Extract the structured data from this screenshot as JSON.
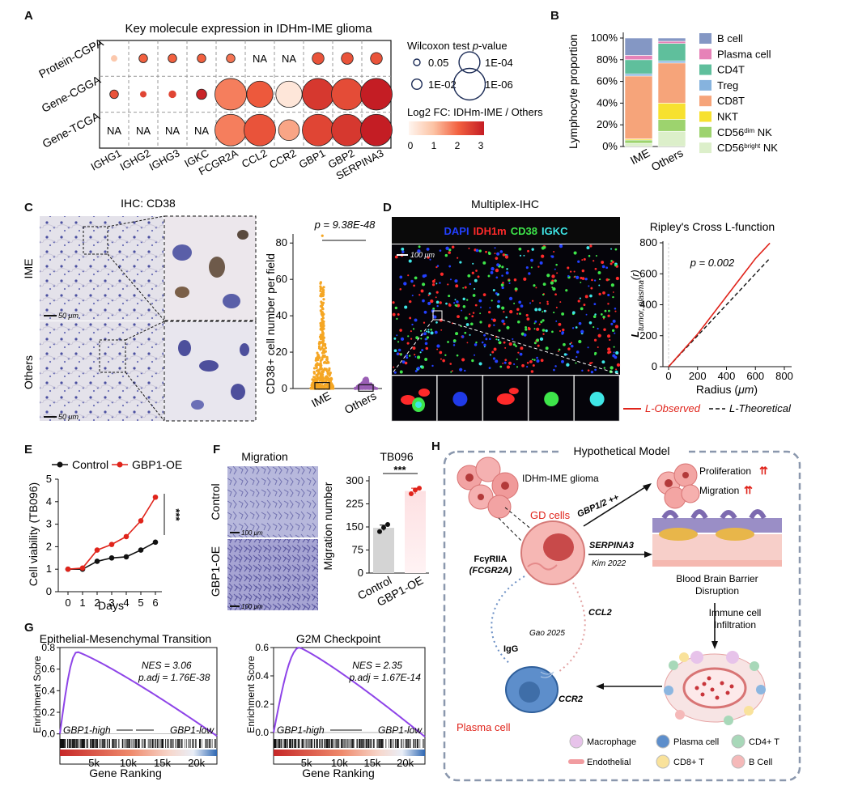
{
  "panel_letters": {
    "A": "A",
    "B": "B",
    "C": "C",
    "D": "D",
    "E": "E",
    "F": "F",
    "G": "G",
    "H": "H"
  },
  "panelA": {
    "title": "Key molecule expression in IDHm-IME glioma",
    "rows": [
      "Protein-CGPA",
      "Gene-CGGA",
      "Gene-TCGA"
    ],
    "cols": [
      "IGHG1",
      "IGHG2",
      "IGHG3",
      "IGKC",
      "FCGR2A",
      "CCL2",
      "CCR2",
      "GBP1",
      "GBP2",
      "SERPINA3"
    ],
    "cells": [
      [
        {
          "fc": 0.9,
          "p": 0.05
        },
        {
          "fc": 2.0,
          "p": 0.02
        },
        {
          "fc": 2.0,
          "p": 0.02
        },
        {
          "fc": 2.0,
          "p": 0.02
        },
        {
          "fc": 1.8,
          "p": 0.02
        },
        {
          "na": "NA"
        },
        {
          "na": "NA"
        },
        {
          "fc": 2.2,
          "p": 0.005
        },
        {
          "fc": 2.2,
          "p": 0.005
        },
        {
          "fc": 2.2,
          "p": 0.005
        }
      ],
      [
        {
          "fc": 2.2,
          "p": 0.02
        },
        {
          "fc": 2.4,
          "p": 0.05
        },
        {
          "fc": 2.4,
          "p": 0.03
        },
        {
          "fc": 2.9,
          "p": 0.01
        },
        {
          "fc": 1.7,
          "p": 1e-06
        },
        {
          "fc": 2.1,
          "p": 1e-05
        },
        {
          "fc": 0.3,
          "p": 1e-05
        },
        {
          "fc": 2.6,
          "p": 1e-06
        },
        {
          "fc": 2.3,
          "p": 1e-06
        },
        {
          "fc": 3.0,
          "p": 1e-06
        }
      ],
      [
        {
          "na": "NA"
        },
        {
          "na": "NA"
        },
        {
          "na": "NA"
        },
        {
          "na": "NA"
        },
        {
          "fc": 1.7,
          "p": 1e-06
        },
        {
          "fc": 2.2,
          "p": 1e-06
        },
        {
          "fc": 1.3,
          "p": 0.0001
        },
        {
          "fc": 2.4,
          "p": 1e-06
        },
        {
          "fc": 2.6,
          "p": 1e-06
        },
        {
          "fc": 3.0,
          "p": 1e-06
        }
      ]
    ],
    "legend_p_title": "Wilcoxon test p-value",
    "legend_p_title_main": "Wilcoxon test ",
    "legend_p_title_em": "p",
    "legend_p_title_tail": "-value",
    "legend_p": [
      {
        "label": "0.05",
        "p": 0.05
      },
      {
        "label": "1E-04",
        "p": 0.0001
      },
      {
        "label": "1E-02",
        "p": 0.01
      },
      {
        "label": "1E-06",
        "p": 1e-06
      }
    ],
    "legend_fc_title": "Log2 FC: IDHm-IME / Others",
    "legend_fc_ticks": [
      "0",
      "1",
      "2",
      "3"
    ]
  },
  "chart_data": [
    {
      "id": "B",
      "type": "bar",
      "ylabel": "Lymphocyte proportion",
      "categories": [
        "IME",
        "Others"
      ],
      "yticks": [
        "0%",
        "20%",
        "40%",
        "60%",
        "80%",
        "100%"
      ],
      "series": [
        {
          "name": "B cell",
          "color": "#8497c4",
          "values": [
            0.16,
            0.03
          ]
        },
        {
          "name": "Plasma cell",
          "color": "#e682b8",
          "values": [
            0.04,
            0.02
          ]
        },
        {
          "name": "CD4T",
          "color": "#5fbf9c",
          "values": [
            0.13,
            0.16
          ]
        },
        {
          "name": "Treg",
          "color": "#86b3de",
          "values": [
            0.02,
            0.02
          ]
        },
        {
          "name": "CD8T",
          "color": "#f6a47a",
          "values": [
            0.58,
            0.37
          ]
        },
        {
          "name": "NKT",
          "color": "#f7e12f",
          "values": [
            0.01,
            0.15
          ]
        },
        {
          "name": "CD56dim NK",
          "color": "#9dd36e",
          "values": [
            0.03,
            0.11
          ]
        },
        {
          "name": "CD56bright NK",
          "color": "#dcefca",
          "values": [
            0.03,
            0.14
          ]
        }
      ],
      "legend_html_names": [
        "B cell",
        "Plasma cell",
        "CD4T",
        "Treg",
        "CD8T",
        "NKT",
        "CD56<tspan baseline-shift='super' font-size='8'>dim</tspan> NK",
        "CD56<tspan baseline-shift='super' font-size='8'>bright</tspan> NK"
      ]
    },
    {
      "id": "E",
      "type": "line",
      "xlabel": "Days",
      "ylabel": "Cell viability (TB096)",
      "x": [
        0,
        1,
        2,
        3,
        4,
        5,
        6
      ],
      "ylim": [
        0,
        5
      ],
      "series": [
        {
          "name": "Control",
          "color": "#111111",
          "values": [
            1.0,
            1.0,
            1.35,
            1.5,
            1.55,
            1.85,
            2.2
          ]
        },
        {
          "name": "GBP1-OE",
          "color": "#e0241b",
          "values": [
            1.0,
            1.05,
            1.85,
            2.1,
            2.45,
            3.15,
            4.2
          ]
        }
      ],
      "annotation": "***"
    },
    {
      "id": "F",
      "type": "bar",
      "title": "TB096",
      "ylabel": "Migration number",
      "categories": [
        "Control",
        "GBP1-OE"
      ],
      "values": [
        147,
        267
      ],
      "points": [
        [
          135,
          148,
          158
        ],
        [
          258,
          270,
          276
        ]
      ],
      "yticks": [
        0,
        75,
        150,
        225,
        300
      ],
      "annotation": "***"
    },
    {
      "id": "C",
      "type": "scatter",
      "ylabel": "CD38+ cell number per field",
      "categories": [
        "IME",
        "Others"
      ],
      "yticks": [
        0,
        20,
        40,
        60,
        80
      ],
      "annotation": "p = 9.38E-48"
    },
    {
      "id": "D",
      "type": "line",
      "title": "Ripley's Cross L-function",
      "xlabel": "Radius (μm)",
      "xticks": [
        0,
        200,
        400,
        600,
        800
      ],
      "yticks": [
        0,
        200,
        400,
        600,
        800
      ],
      "annotation": "p = 0.002",
      "series": [
        {
          "name": "L-Observed",
          "color": "#e0241b"
        },
        {
          "name": "L-Theoretical",
          "color": "#111111"
        }
      ]
    },
    {
      "id": "G1",
      "type": "line",
      "title": "Epithelial-Mesenchymal Transition",
      "ylabel": "Enrichment Score",
      "xlabel": "Gene Ranking",
      "yticks": [
        "0.0",
        "0.2",
        "0.4",
        "0.6",
        "0.8"
      ],
      "xticks": [
        "5k",
        "10k",
        "15k",
        "20k"
      ],
      "nes": "NES = 3.06",
      "padj": "p.adj = 1.76E-38",
      "left": "GBP1-high",
      "right": "GBP1-low"
    },
    {
      "id": "G2",
      "type": "line",
      "title": "G2M Checkpoint",
      "ylabel": "Enrichment Score",
      "xlabel": "Gene Ranking",
      "yticks": [
        "0.0",
        "0.2",
        "0.4",
        "0.6"
      ],
      "xticks": [
        "5k",
        "10k",
        "15k",
        "20k"
      ],
      "nes": "NES = 2.35",
      "padj": "p.adj = 1.67E-14",
      "left": "GBP1-high",
      "right": "GBP1-low"
    }
  ],
  "panelC": {
    "title": "IHC: CD38",
    "rows": [
      "IME",
      "Others"
    ],
    "scale": "50 μm"
  },
  "panelD": {
    "title": "Multiplex-IHC",
    "channels": [
      {
        "name": "DAPI",
        "color": "#2340ff"
      },
      {
        "name": "IDH1m",
        "color": "#ff2a2a"
      },
      {
        "name": "CD38",
        "color": "#3ee64a"
      },
      {
        "name": "IGKC",
        "color": "#3fe6e6"
      }
    ],
    "scale": "100 μm",
    "ylabel_main": "L",
    "ylabel_sub": "tumor, plasma",
    "ylabel_tail": "(r)",
    "legend_obs": "L-Observed",
    "legend_theo": "L-Theoretical"
  },
  "panelF": {
    "title": "Migration",
    "rows": [
      "Control",
      "GBP1-OE"
    ],
    "scale": "100 μm"
  },
  "panelH": {
    "title": "Hypothetical Model",
    "glioma": "IDHm-IME glioma",
    "gd": "GD cells",
    "gbp": "GBP1/2 ++",
    "serpina": "SERPINA3",
    "kim": "Kim 2022",
    "prolif": "Proliferation",
    "migr": "Migration",
    "bbb": "Blood Brain Barrier Disruption",
    "bbb1": "Blood Brain Barrier",
    "bbb2": "Disruption",
    "infil1": "Immune cell",
    "infil2": "Infiltration",
    "fc1": "FcγRIIA",
    "fc2": "(FCGR2A)",
    "gao": "Gao 2025",
    "ccl2": "CCL2",
    "igg": "IgG",
    "ccr2": "CCR2",
    "plasma": "Plasma cell",
    "legend": [
      "Macrophage",
      "Plasma cell",
      "CD4+ T",
      "Endothelial",
      "CD8+ T",
      "B Cell"
    ]
  }
}
